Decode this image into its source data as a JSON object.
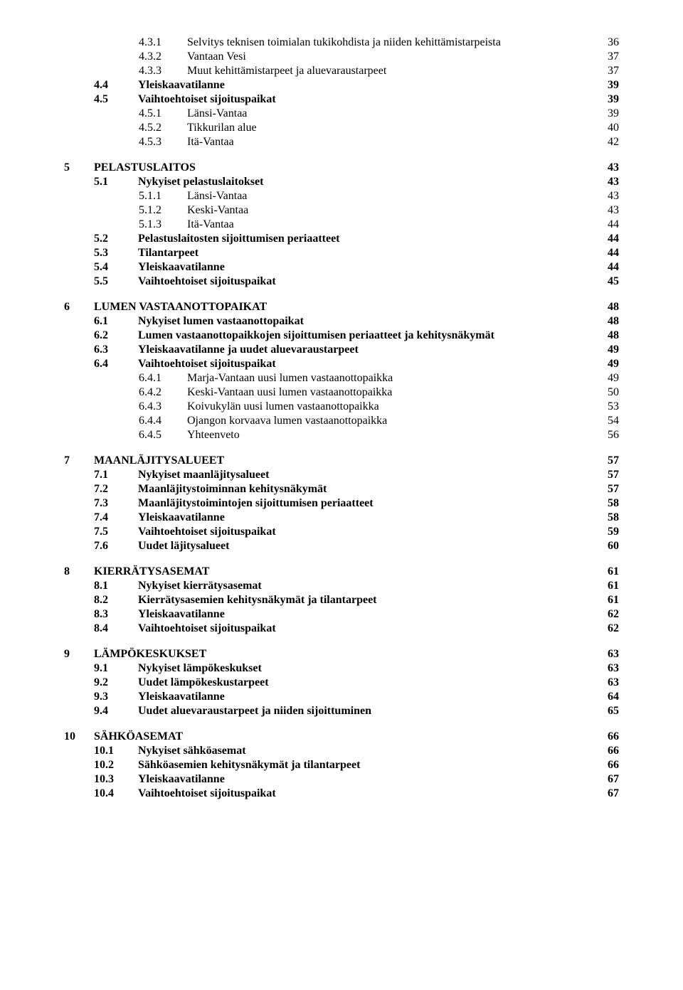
{
  "toc": [
    {
      "gap": false,
      "level": 2,
      "num": "4.3.1",
      "title": "Selvitys teknisen toimialan tukikohdista ja niiden kehittämistarpeista",
      "page": "36"
    },
    {
      "gap": false,
      "level": 2,
      "num": "4.3.2",
      "title": "Vantaan Vesi",
      "page": "37"
    },
    {
      "gap": false,
      "level": 2,
      "num": "4.3.3",
      "title": "Muut kehittämistarpeet ja aluevaraustarpeet",
      "page": "37"
    },
    {
      "gap": false,
      "level": 1,
      "num": "4.4",
      "title": "Yleiskaavatilanne",
      "page": "39"
    },
    {
      "gap": false,
      "level": 1,
      "num": "4.5",
      "title": "Vaihtoehtoiset sijoituspaikat",
      "page": "39"
    },
    {
      "gap": false,
      "level": 2,
      "num": "4.5.1",
      "title": "Länsi-Vantaa",
      "page": "39"
    },
    {
      "gap": false,
      "level": 2,
      "num": "4.5.2",
      "title": "Tikkurilan alue",
      "page": "40"
    },
    {
      "gap": false,
      "level": 2,
      "num": "4.5.3",
      "title": "Itä-Vantaa",
      "page": "42"
    },
    {
      "gap": true,
      "level": 0,
      "num": "5",
      "title": "PELASTUSLAITOS",
      "page": "43"
    },
    {
      "gap": false,
      "level": 1,
      "num": "5.1",
      "title": "Nykyiset pelastuslaitokset",
      "page": "43"
    },
    {
      "gap": false,
      "level": 2,
      "num": "5.1.1",
      "title": "Länsi-Vantaa",
      "page": "43"
    },
    {
      "gap": false,
      "level": 2,
      "num": "5.1.2",
      "title": "Keski-Vantaa",
      "page": "43"
    },
    {
      "gap": false,
      "level": 2,
      "num": "5.1.3",
      "title": "Itä-Vantaa",
      "page": "44"
    },
    {
      "gap": false,
      "level": 1,
      "num": "5.2",
      "title": "Pelastuslaitosten sijoittumisen periaatteet",
      "page": "44"
    },
    {
      "gap": false,
      "level": 1,
      "num": "5.3",
      "title": "Tilantarpeet",
      "page": "44"
    },
    {
      "gap": false,
      "level": 1,
      "num": "5.4",
      "title": "Yleiskaavatilanne",
      "page": "44"
    },
    {
      "gap": false,
      "level": 1,
      "num": "5.5",
      "title": "Vaihtoehtoiset sijoituspaikat",
      "page": "45"
    },
    {
      "gap": true,
      "level": 0,
      "num": "6",
      "title": "LUMEN VASTAANOTTOPAIKAT",
      "page": "48"
    },
    {
      "gap": false,
      "level": 1,
      "num": "6.1",
      "title": "Nykyiset lumen vastaanottopaikat",
      "page": "48"
    },
    {
      "gap": false,
      "level": 1,
      "num": "6.2",
      "title": "Lumen vastaanottopaikkojen sijoittumisen periaatteet ja kehitysnäkymät",
      "page": "48"
    },
    {
      "gap": false,
      "level": 1,
      "num": "6.3",
      "title": "Yleiskaavatilanne ja uudet aluevaraustarpeet",
      "page": "49"
    },
    {
      "gap": false,
      "level": 1,
      "num": "6.4",
      "title": "Vaihtoehtoiset sijoituspaikat",
      "page": "49"
    },
    {
      "gap": false,
      "level": 2,
      "num": "6.4.1",
      "title": "Marja-Vantaan uusi lumen vastaanottopaikka",
      "page": "49"
    },
    {
      "gap": false,
      "level": 2,
      "num": "6.4.2",
      "title": "Keski-Vantaan uusi lumen vastaanottopaikka",
      "page": "50"
    },
    {
      "gap": false,
      "level": 2,
      "num": "6.4.3",
      "title": "Koivukylän uusi lumen vastaanottopaikka",
      "page": "53"
    },
    {
      "gap": false,
      "level": 2,
      "num": "6.4.4",
      "title": "Ojangon korvaava lumen vastaanottopaikka",
      "page": "54"
    },
    {
      "gap": false,
      "level": 2,
      "num": "6.4.5",
      "title": "Yhteenveto",
      "page": "56"
    },
    {
      "gap": true,
      "level": 0,
      "num": "7",
      "title": "MAANLÄJITYSALUEET",
      "page": "57"
    },
    {
      "gap": false,
      "level": 1,
      "num": "7.1",
      "title": "Nykyiset maanläjitysalueet",
      "page": "57"
    },
    {
      "gap": false,
      "level": 1,
      "num": "7.2",
      "title": "Maanläjitystoiminnan kehitysnäkymät",
      "page": "57"
    },
    {
      "gap": false,
      "level": 1,
      "num": "7.3",
      "title": "Maanläjitystoimintojen sijoittumisen periaatteet",
      "page": "58"
    },
    {
      "gap": false,
      "level": 1,
      "num": "7.4",
      "title": "Yleiskaavatilanne",
      "page": "58"
    },
    {
      "gap": false,
      "level": 1,
      "num": "7.5",
      "title": "Vaihtoehtoiset sijoituspaikat",
      "page": "59"
    },
    {
      "gap": false,
      "level": 1,
      "num": "7.6",
      "title": "Uudet läjitysalueet",
      "page": "60"
    },
    {
      "gap": true,
      "level": 0,
      "num": "8",
      "title": "KIERRÄTYSASEMAT",
      "page": "61"
    },
    {
      "gap": false,
      "level": 1,
      "num": "8.1",
      "title": "Nykyiset kierrätysasemat",
      "page": "61"
    },
    {
      "gap": false,
      "level": 1,
      "num": "8.2",
      "title": "Kierrätysasemien kehitysnäkymät ja tilantarpeet",
      "page": "61"
    },
    {
      "gap": false,
      "level": 1,
      "num": "8.3",
      "title": "Yleiskaavatilanne",
      "page": "62"
    },
    {
      "gap": false,
      "level": 1,
      "num": "8.4",
      "title": "Vaihtoehtoiset sijoituspaikat",
      "page": "62"
    },
    {
      "gap": true,
      "level": 0,
      "num": "9",
      "title": "LÄMPÖKESKUKSET",
      "page": "63"
    },
    {
      "gap": false,
      "level": 1,
      "num": "9.1",
      "title": "Nykyiset lämpökeskukset",
      "page": "63"
    },
    {
      "gap": false,
      "level": 1,
      "num": "9.2",
      "title": "Uudet lämpökeskustarpeet",
      "page": "63"
    },
    {
      "gap": false,
      "level": 1,
      "num": "9.3",
      "title": "Yleiskaavatilanne",
      "page": "64"
    },
    {
      "gap": false,
      "level": 1,
      "num": "9.4",
      "title": "Uudet aluevaraustarpeet ja niiden sijoittuminen",
      "page": "65"
    },
    {
      "gap": true,
      "level": 0,
      "num": "10",
      "title": "SÄHKÖASEMAT",
      "page": "66"
    },
    {
      "gap": false,
      "level": 1,
      "num": "10.1",
      "title": "Nykyiset sähköasemat",
      "page": "66"
    },
    {
      "gap": false,
      "level": 1,
      "num": "10.2",
      "title": "Sähköasemien kehitysnäkymät ja tilantarpeet",
      "page": "66"
    },
    {
      "gap": false,
      "level": 1,
      "num": "10.3",
      "title": "Yleiskaavatilanne",
      "page": "67"
    },
    {
      "gap": false,
      "level": 1,
      "num": "10.4",
      "title": "Vaihtoehtoiset sijoituspaikat",
      "page": "67"
    }
  ]
}
